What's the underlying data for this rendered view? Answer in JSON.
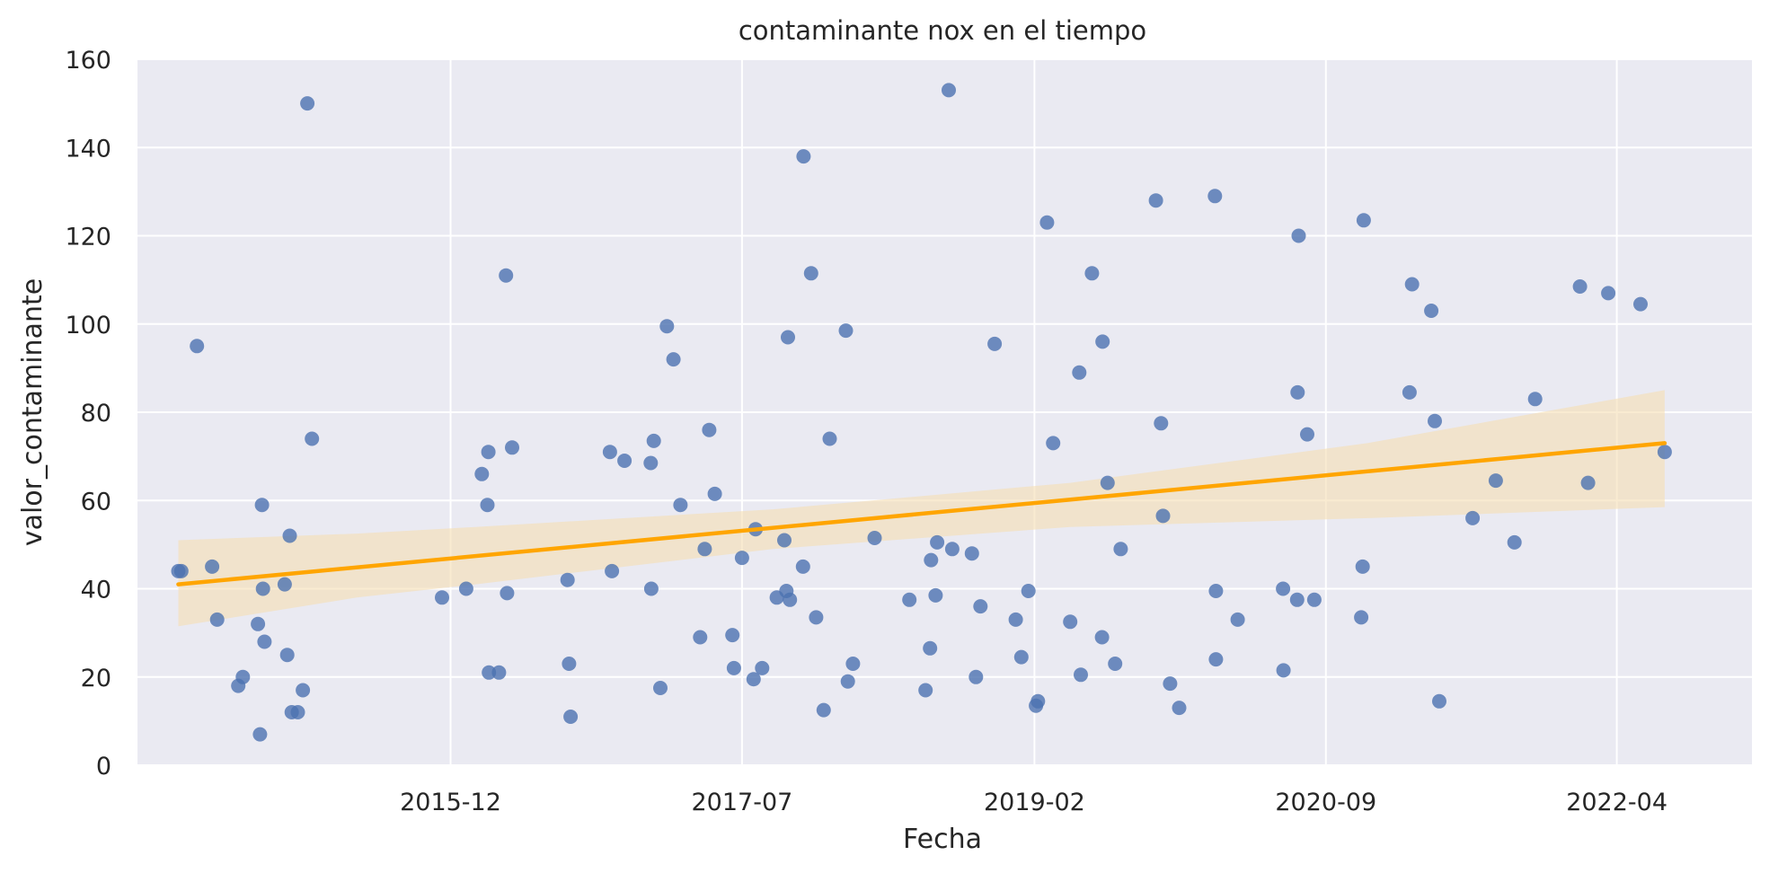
{
  "chart_data": {
    "type": "scatter",
    "title": "contaminante nox en el tiempo",
    "xlabel": "Fecha",
    "ylabel": "valor_contaminante",
    "ylim": [
      0,
      160
    ],
    "yticks": [
      0,
      20,
      40,
      60,
      80,
      100,
      120,
      140,
      160
    ],
    "xlim": [
      "2014-03-20",
      "2022-12-25"
    ],
    "xticks": [
      {
        "date": "2015-12-01",
        "label": "2015-12"
      },
      {
        "date": "2017-07-01",
        "label": "2017-07"
      },
      {
        "date": "2019-02-01",
        "label": "2019-02"
      },
      {
        "date": "2020-09-01",
        "label": "2020-09"
      },
      {
        "date": "2022-04-01",
        "label": "2022-04"
      }
    ],
    "grid": true,
    "colors": {
      "background": "#eaeaf2",
      "grid": "#ffffff",
      "points": "#4c72b0",
      "regression": "#ffa500",
      "confidence_band": "#f5deb3"
    },
    "points": [
      [
        "2014-06-09",
        44
      ],
      [
        "2014-06-15",
        44
      ],
      [
        "2014-07-16",
        95
      ],
      [
        "2014-08-15",
        45
      ],
      [
        "2014-08-25",
        33
      ],
      [
        "2014-10-06",
        18
      ],
      [
        "2014-10-15",
        20
      ],
      [
        "2014-11-14",
        32
      ],
      [
        "2014-11-18",
        7
      ],
      [
        "2014-11-22",
        59
      ],
      [
        "2014-11-24",
        40
      ],
      [
        "2014-11-27",
        28
      ],
      [
        "2015-01-06",
        41
      ],
      [
        "2015-01-11",
        25
      ],
      [
        "2015-01-16",
        52
      ],
      [
        "2015-01-20",
        12
      ],
      [
        "2015-02-01",
        12
      ],
      [
        "2015-02-11",
        17
      ],
      [
        "2015-02-20",
        150
      ],
      [
        "2015-03-01",
        74
      ],
      [
        "2015-11-14",
        38
      ],
      [
        "2016-01-01",
        40
      ],
      [
        "2016-02-01",
        66
      ],
      [
        "2016-02-12",
        59
      ],
      [
        "2016-02-14",
        71
      ],
      [
        "2016-02-15",
        21
      ],
      [
        "2016-03-06",
        21
      ],
      [
        "2016-03-20",
        111
      ],
      [
        "2016-03-22",
        39
      ],
      [
        "2016-04-01",
        72
      ],
      [
        "2016-07-20",
        42
      ],
      [
        "2016-07-23",
        23
      ],
      [
        "2016-07-26",
        11
      ],
      [
        "2016-10-12",
        71
      ],
      [
        "2016-10-16",
        44
      ],
      [
        "2016-11-10",
        69
      ],
      [
        "2017-01-01",
        68.5
      ],
      [
        "2017-01-02",
        40
      ],
      [
        "2017-01-07",
        73.5
      ],
      [
        "2017-01-20",
        17.5
      ],
      [
        "2017-02-02",
        99.5
      ],
      [
        "2017-02-15",
        92
      ],
      [
        "2017-03-01",
        59
      ],
      [
        "2017-04-09",
        29
      ],
      [
        "2017-04-18",
        49
      ],
      [
        "2017-04-27",
        76
      ],
      [
        "2017-05-08",
        61.5
      ],
      [
        "2017-06-12",
        29.5
      ],
      [
        "2017-06-15",
        22
      ],
      [
        "2017-07-01",
        47
      ],
      [
        "2017-07-24",
        19.5
      ],
      [
        "2017-07-28",
        53.5
      ],
      [
        "2017-08-10",
        22
      ],
      [
        "2017-09-08",
        38
      ],
      [
        "2017-09-23",
        51
      ],
      [
        "2017-09-27",
        39.5
      ],
      [
        "2017-09-30",
        97
      ],
      [
        "2017-10-04",
        37.5
      ],
      [
        "2017-10-30",
        45
      ],
      [
        "2017-10-31",
        138
      ],
      [
        "2017-11-15",
        111.5
      ],
      [
        "2017-11-25",
        33.5
      ],
      [
        "2017-12-10",
        12.5
      ],
      [
        "2017-12-22",
        74
      ],
      [
        "2018-01-23",
        98.5
      ],
      [
        "2018-01-27",
        19
      ],
      [
        "2018-02-06",
        23
      ],
      [
        "2018-03-21",
        51.5
      ],
      [
        "2018-05-29",
        37.5
      ],
      [
        "2018-06-30",
        17
      ],
      [
        "2018-07-09",
        26.5
      ],
      [
        "2018-07-11",
        46.5
      ],
      [
        "2018-07-20",
        38.5
      ],
      [
        "2018-07-23",
        50.5
      ],
      [
        "2018-08-15",
        153
      ],
      [
        "2018-08-22",
        49
      ],
      [
        "2018-09-30",
        48
      ],
      [
        "2018-10-08",
        20
      ],
      [
        "2018-10-17",
        36
      ],
      [
        "2018-11-14",
        95.5
      ],
      [
        "2018-12-26",
        33
      ],
      [
        "2019-01-06",
        24.5
      ],
      [
        "2019-01-20",
        39.5
      ],
      [
        "2019-02-04",
        13.5
      ],
      [
        "2019-02-08",
        14.5
      ],
      [
        "2019-02-26",
        123
      ],
      [
        "2019-03-10",
        73
      ],
      [
        "2019-04-13",
        32.5
      ],
      [
        "2019-05-01",
        89
      ],
      [
        "2019-05-04",
        20.5
      ],
      [
        "2019-05-26",
        111.5
      ],
      [
        "2019-06-15",
        29
      ],
      [
        "2019-06-16",
        96
      ],
      [
        "2019-06-26",
        64
      ],
      [
        "2019-07-11",
        23
      ],
      [
        "2019-07-22",
        49
      ],
      [
        "2019-09-30",
        128
      ],
      [
        "2019-10-10",
        77.5
      ],
      [
        "2019-10-14",
        56.5
      ],
      [
        "2019-10-28",
        18.5
      ],
      [
        "2019-11-15",
        13
      ],
      [
        "2020-01-25",
        129
      ],
      [
        "2020-01-27",
        39.5
      ],
      [
        "2020-01-27",
        24
      ],
      [
        "2020-03-10",
        33
      ],
      [
        "2020-06-08",
        40
      ],
      [
        "2020-06-09",
        21.5
      ],
      [
        "2020-07-06",
        37.5
      ],
      [
        "2020-07-07",
        84.5
      ],
      [
        "2020-07-09",
        120
      ],
      [
        "2020-07-26",
        75
      ],
      [
        "2020-08-09",
        37.5
      ],
      [
        "2020-11-10",
        33.5
      ],
      [
        "2020-11-13",
        45
      ],
      [
        "2020-11-15",
        123.5
      ],
      [
        "2021-02-14",
        84.5
      ],
      [
        "2021-02-19",
        109
      ],
      [
        "2021-03-29",
        103
      ],
      [
        "2021-04-05",
        78
      ],
      [
        "2021-04-14",
        14.5
      ],
      [
        "2021-06-19",
        56
      ],
      [
        "2021-08-04",
        64.5
      ],
      [
        "2021-09-10",
        50.5
      ],
      [
        "2021-10-21",
        83
      ],
      [
        "2022-01-18",
        108.5
      ],
      [
        "2022-02-03",
        64
      ],
      [
        "2022-03-15",
        107
      ],
      [
        "2022-05-18",
        104.5
      ],
      [
        "2022-07-05",
        71
      ]
    ],
    "regression": {
      "x_start": "2014-06-09",
      "x_end": "2022-07-05",
      "line": [
        41,
        73
      ],
      "band_upper": [
        [
          0,
          51
        ],
        [
          0.12,
          52.5
        ],
        [
          0.2,
          54
        ],
        [
          0.4,
          58
        ],
        [
          0.6,
          64
        ],
        [
          0.8,
          73
        ],
        [
          1,
          85
        ]
      ],
      "band_lower": [
        [
          0,
          31.5
        ],
        [
          0.12,
          38
        ],
        [
          0.2,
          41
        ],
        [
          0.4,
          49
        ],
        [
          0.6,
          54
        ],
        [
          0.8,
          56
        ],
        [
          1,
          58.5
        ]
      ]
    }
  }
}
